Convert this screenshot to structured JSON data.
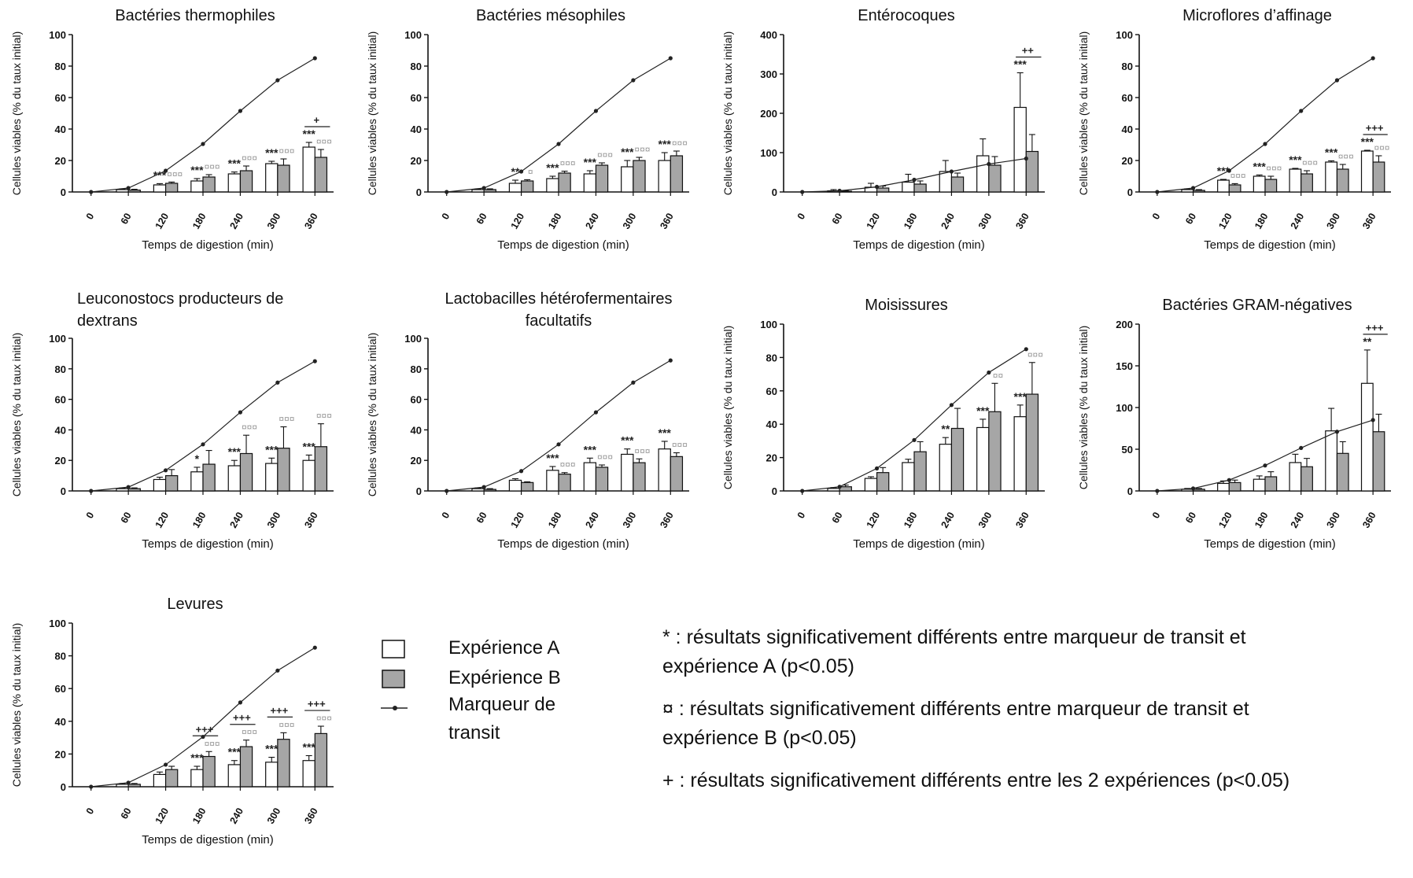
{
  "chart_data": [
    {
      "type": "bar",
      "title": "Bactéries thermophiles",
      "xlabel": "Temps de digestion (min)",
      "ylabel": "Cellules viables (% du taux initial)",
      "categories": [
        "0",
        "60",
        "120",
        "180",
        "240",
        "300",
        "360"
      ],
      "ylim": [
        0,
        100
      ],
      "yticks": [
        0,
        20,
        40,
        60,
        80,
        100
      ],
      "series": [
        {
          "name": "Expérience A",
          "values": [
            0,
            1.5,
            4.5,
            7,
            11.5,
            18,
            28.5
          ],
          "err": [
            0,
            0.5,
            0.8,
            1.5,
            1.2,
            1.5,
            3
          ]
        },
        {
          "name": "Expérience B",
          "values": [
            0,
            1.2,
            5.5,
            9.5,
            13.5,
            17,
            22
          ],
          "err": [
            0,
            0.5,
            0.8,
            1.5,
            3,
            4,
            5
          ]
        }
      ],
      "marker": [
        0,
        2.5,
        13.5,
        30.5,
        51.5,
        71,
        85
      ],
      "annotations": [
        {
          "i": 2,
          "a": "***",
          "b": "¤¤¤"
        },
        {
          "i": 3,
          "a": "***",
          "b": "¤¤¤"
        },
        {
          "i": 4,
          "a": "***",
          "b": "¤¤¤"
        },
        {
          "i": 5,
          "a": "***",
          "b": "¤¤¤"
        },
        {
          "i": 6,
          "a": "***",
          "b": "¤¤¤",
          "p": "+"
        }
      ]
    },
    {
      "type": "bar",
      "title": "Bactéries mésophiles",
      "xlabel": "Temps de digestion (min)",
      "ylabel": "Cellules viables (% du taux initial)",
      "categories": [
        "0",
        "60",
        "120",
        "180",
        "240",
        "300",
        "360"
      ],
      "ylim": [
        0,
        100
      ],
      "yticks": [
        0,
        20,
        40,
        60,
        80,
        100
      ],
      "series": [
        {
          "name": "Expérience A",
          "values": [
            0,
            1.5,
            5.5,
            8.5,
            11.5,
            16,
            20
          ],
          "err": [
            0,
            0.5,
            2,
            1.5,
            2,
            4,
            5
          ]
        },
        {
          "name": "Expérience B",
          "values": [
            0,
            1.5,
            7,
            12,
            17,
            20,
            23
          ],
          "err": [
            0,
            0.5,
            0.8,
            1.2,
            1.5,
            2,
            3
          ]
        }
      ],
      "marker": [
        0,
        2.5,
        13,
        30.5,
        51.5,
        71,
        85
      ],
      "annotations": [
        {
          "i": 2,
          "a": "**",
          "b": "¤"
        },
        {
          "i": 3,
          "a": "***",
          "b": "¤¤¤"
        },
        {
          "i": 4,
          "a": "***",
          "b": "¤¤¤"
        },
        {
          "i": 5,
          "a": "***",
          "b": "¤¤¤"
        },
        {
          "i": 6,
          "a": "***",
          "b": "¤¤¤"
        }
      ]
    },
    {
      "type": "bar",
      "title": "Entérocoques",
      "xlabel": "Temps de digestion (min)",
      "ylabel": "Cellules viables (% du taux initial)",
      "categories": [
        "0",
        "60",
        "120",
        "180",
        "240",
        "300",
        "360"
      ],
      "ylim": [
        0,
        400
      ],
      "yticks": [
        0,
        100,
        200,
        300,
        400
      ],
      "series": [
        {
          "name": "Expérience A",
          "values": [
            0,
            3,
            12,
            25,
            52,
            92,
            215
          ],
          "err": [
            0,
            3,
            10,
            20,
            28,
            43,
            88
          ]
        },
        {
          "name": "Expérience B",
          "values": [
            0,
            2,
            10,
            20,
            38,
            68,
            103
          ],
          "err": [
            0,
            2,
            5,
            8,
            10,
            22,
            43
          ]
        }
      ],
      "marker": [
        0,
        3,
        13,
        31,
        52,
        71,
        85
      ],
      "annotations": [
        {
          "i": 6,
          "a": "***",
          "b": "",
          "p": "++"
        }
      ]
    },
    {
      "type": "bar",
      "title": "Microflores d’affinage",
      "xlabel": "Temps de digestion (min)",
      "ylabel": "Cellules viables (% du taux initial)",
      "categories": [
        "0",
        "60",
        "120",
        "180",
        "240",
        "300",
        "360"
      ],
      "ylim": [
        0,
        100
      ],
      "yticks": [
        0,
        20,
        40,
        60,
        80,
        100
      ],
      "series": [
        {
          "name": "Expérience A",
          "values": [
            0,
            1.5,
            7.5,
            10,
            14.5,
            19,
            26
          ],
          "err": [
            0,
            0.5,
            0.5,
            0.8,
            0.5,
            0.8,
            0.5
          ]
        },
        {
          "name": "Expérience B",
          "values": [
            0,
            1,
            4.5,
            8,
            11.5,
            14.5,
            19
          ],
          "err": [
            0,
            0.5,
            0.8,
            2,
            2,
            3,
            4
          ]
        }
      ],
      "marker": [
        0,
        2.5,
        13.5,
        30.5,
        51.5,
        71,
        85
      ],
      "annotations": [
        {
          "i": 2,
          "a": "***",
          "b": "¤¤¤"
        },
        {
          "i": 3,
          "a": "***",
          "b": "¤¤¤"
        },
        {
          "i": 4,
          "a": "***",
          "b": "¤¤¤"
        },
        {
          "i": 5,
          "a": "***",
          "b": "¤¤¤"
        },
        {
          "i": 6,
          "a": "***",
          "b": "¤¤¤",
          "p": "+++"
        }
      ]
    },
    {
      "type": "bar",
      "title": "Leuconostocs producteurs de dextrans",
      "xlabel": "Temps de digestion (min)",
      "ylabel": "Cellules viables (% du taux initial)",
      "categories": [
        "0",
        "60",
        "120",
        "180",
        "240",
        "300",
        "360"
      ],
      "ylim": [
        0,
        100
      ],
      "yticks": [
        0,
        20,
        40,
        60,
        80,
        100
      ],
      "series": [
        {
          "name": "Expérience A",
          "values": [
            0,
            1.5,
            7.5,
            12.5,
            16.5,
            18,
            20
          ],
          "err": [
            0,
            0.5,
            1.5,
            3,
            3.5,
            3.5,
            3.5
          ]
        },
        {
          "name": "Expérience B",
          "values": [
            0,
            1.5,
            10,
            17.5,
            24.5,
            28,
            29
          ],
          "err": [
            0,
            0.5,
            4,
            9,
            12,
            14,
            15
          ]
        }
      ],
      "marker": [
        0,
        2.5,
        13.5,
        30.5,
        51.5,
        71,
        85
      ],
      "annotations": [
        {
          "i": 3,
          "a": "*",
          "b": ""
        },
        {
          "i": 4,
          "a": "***",
          "b": "¤¤¤"
        },
        {
          "i": 5,
          "a": "***",
          "b": "¤¤¤"
        },
        {
          "i": 6,
          "a": "***",
          "b": "¤¤¤"
        }
      ]
    },
    {
      "type": "bar",
      "title": "Lactobacilles hétérofermentaires facultatifs",
      "title_lines": [
        "Lactobacilles hétérofermentaires",
        "facultatifs"
      ],
      "xlabel": "Temps de digestion (min)",
      "ylabel": "Cellules viables (% du taux initial)",
      "categories": [
        "0",
        "60",
        "120",
        "180",
        "240",
        "300",
        "360"
      ],
      "ylim": [
        0,
        100
      ],
      "yticks": [
        0,
        20,
        40,
        60,
        80,
        100
      ],
      "series": [
        {
          "name": "Expérience A",
          "values": [
            0,
            1.5,
            7,
            13.5,
            18.5,
            24,
            27.5
          ],
          "err": [
            0,
            0.5,
            1,
            2.5,
            3,
            3.5,
            5
          ]
        },
        {
          "name": "Expérience B",
          "values": [
            0,
            1,
            5.5,
            11,
            15.5,
            18.5,
            22.5
          ],
          "err": [
            0,
            0.5,
            0.5,
            1,
            1.5,
            2.5,
            2.5
          ]
        }
      ],
      "marker": [
        0,
        2.5,
        13,
        30.5,
        51.5,
        71,
        85.5
      ],
      "annotations": [
        {
          "i": 2,
          "a": "",
          "b": ""
        },
        {
          "i": 3,
          "a": "***",
          "b": "¤¤¤"
        },
        {
          "i": 4,
          "a": "***",
          "b": "¤¤¤"
        },
        {
          "i": 5,
          "a": "***",
          "b": "¤¤¤"
        },
        {
          "i": 6,
          "a": "***",
          "b": "¤¤¤"
        }
      ]
    },
    {
      "type": "bar",
      "title": "Moisissures",
      "xlabel": "Temps de digestion (min)",
      "ylabel": "Cellules viables (% du taux initial)",
      "categories": [
        "0",
        "60",
        "120",
        "180",
        "240",
        "300",
        "360"
      ],
      "ylim": [
        0,
        100
      ],
      "yticks": [
        0,
        20,
        40,
        60,
        80,
        100
      ],
      "series": [
        {
          "name": "Expérience A",
          "values": [
            0,
            1.5,
            7.5,
            17,
            28,
            38,
            44.5
          ],
          "err": [
            0,
            0.5,
            1,
            2,
            4,
            5,
            7
          ]
        },
        {
          "name": "Expérience B",
          "values": [
            0,
            2.5,
            11,
            23.5,
            37.5,
            47.5,
            58
          ],
          "err": [
            0,
            1,
            3,
            6,
            12,
            17,
            19
          ]
        }
      ],
      "marker": [
        0,
        2.5,
        13.5,
        30.5,
        51.5,
        71,
        85
      ],
      "annotations": [
        {
          "i": 4,
          "a": "**",
          "b": ""
        },
        {
          "i": 5,
          "a": "***",
          "b": "¤¤"
        },
        {
          "i": 6,
          "a": "***",
          "b": "¤¤¤"
        }
      ]
    },
    {
      "type": "bar",
      "title": "Bactéries GRAM-négatives",
      "xlabel": "Temps de digestion (min)",
      "ylabel": "Cellules viables (% du taux initial)",
      "categories": [
        "0",
        "60",
        "120",
        "180",
        "240",
        "300",
        "360"
      ],
      "ylim": [
        0,
        200
      ],
      "yticks": [
        0,
        50,
        100,
        150,
        200
      ],
      "series": [
        {
          "name": "Expérience A",
          "values": [
            0,
            2,
            9,
            14,
            34,
            72,
            129
          ],
          "err": [
            0,
            1,
            3,
            4,
            10,
            27,
            40
          ]
        },
        {
          "name": "Expérience B",
          "values": [
            0,
            2,
            10,
            17,
            29,
            45,
            71
          ],
          "err": [
            0,
            1,
            3,
            6,
            10,
            14,
            21
          ]
        }
      ],
      "marker": [
        0,
        3,
        13,
        30.5,
        51.5,
        71,
        85
      ],
      "annotations": [
        {
          "i": 6,
          "a": "**",
          "b": "",
          "p": "+++"
        }
      ]
    },
    {
      "type": "bar",
      "title": "Levures",
      "xlabel": "Temps de digestion (min)",
      "ylabel": "Cellules viables (% du taux initial)",
      "categories": [
        "0",
        "60",
        "120",
        "180",
        "240",
        "300",
        "360"
      ],
      "ylim": [
        0,
        100
      ],
      "yticks": [
        0,
        20,
        40,
        60,
        80,
        100
      ],
      "series": [
        {
          "name": "Expérience A",
          "values": [
            0,
            1.5,
            7.5,
            10.5,
            13.5,
            15,
            16
          ],
          "err": [
            0,
            0.5,
            1.5,
            2,
            2.5,
            3,
            3
          ]
        },
        {
          "name": "Expérience B",
          "values": [
            0,
            1.5,
            10.5,
            18.5,
            24.5,
            29,
            32.5
          ],
          "err": [
            0,
            0.5,
            2,
            3,
            4,
            4,
            4.5
          ]
        }
      ],
      "marker": [
        0,
        2.5,
        13.5,
        30.5,
        51.5,
        71,
        85
      ],
      "annotations": [
        {
          "i": 3,
          "a": "***",
          "b": "¤¤¤",
          "p": "+++"
        },
        {
          "i": 4,
          "a": "***",
          "b": "¤¤¤",
          "p": "+++"
        },
        {
          "i": 5,
          "a": "***",
          "b": "¤¤¤",
          "p": "+++"
        },
        {
          "i": 6,
          "a": "***",
          "b": "¤¤¤",
          "p": "+++"
        }
      ]
    }
  ],
  "legend": {
    "exp_a": "Expérience A",
    "exp_b": "Expérience B",
    "marker_line1": "Marqueur de",
    "marker_line2": "transit"
  },
  "notes": {
    "star": "* : résultats significativement différents entre marqueur de transit et expérience A (p<0.05)",
    "star_l1": "* : résultats significativement différents entre marqueur de transit et",
    "star_l2": "expérience A (p<0.05)",
    "curr_l1": "¤ : résultats significativement différents entre marqueur de transit et",
    "curr_l2": "expérience B (p<0.05)",
    "plus": "+ : résultats significativement différents entre les 2 expériences (p<0.05)"
  },
  "colors": {
    "exp_a": "#ffffff",
    "exp_b": "#a6a6a6",
    "marker": "#222222",
    "axis": "#111111"
  }
}
